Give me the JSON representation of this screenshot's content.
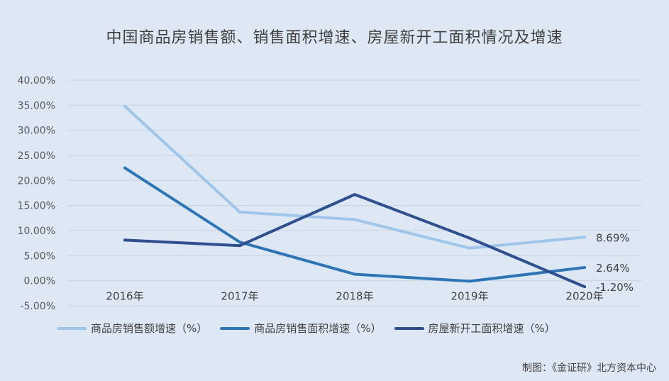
{
  "chart_data": {
    "type": "line",
    "title": "中国商品房销售额、销售面积增速、房屋新开工面积情况及增速",
    "categories": [
      "2016年",
      "2017年",
      "2018年",
      "2019年",
      "2020年"
    ],
    "ylim": [
      -5,
      40
    ],
    "yticks": [
      "40.00%",
      "35.00%",
      "30.00%",
      "25.00%",
      "20.00%",
      "15.00%",
      "10.00%",
      "5.00%",
      "0.00%",
      "-5.00%"
    ],
    "grid": true,
    "legend_position": "bottom",
    "series": [
      {
        "name": "商品房销售额增速（%）",
        "values": [
          34.8,
          13.7,
          12.2,
          6.5,
          8.69
        ],
        "color": "#9fc5e8",
        "end_label": "8.69%"
      },
      {
        "name": "商品房销售面积增速（%）",
        "values": [
          22.5,
          7.7,
          1.3,
          -0.1,
          2.64
        ],
        "color": "#2e75b6",
        "end_label": "2.64%"
      },
      {
        "name": "房屋新开工面积增速（%）",
        "values": [
          8.1,
          7.0,
          17.2,
          8.5,
          -1.2
        ],
        "color": "#2f4f8f",
        "end_label": "-1.20%"
      }
    ]
  },
  "source": "制图：《金证研》北方资本中心"
}
